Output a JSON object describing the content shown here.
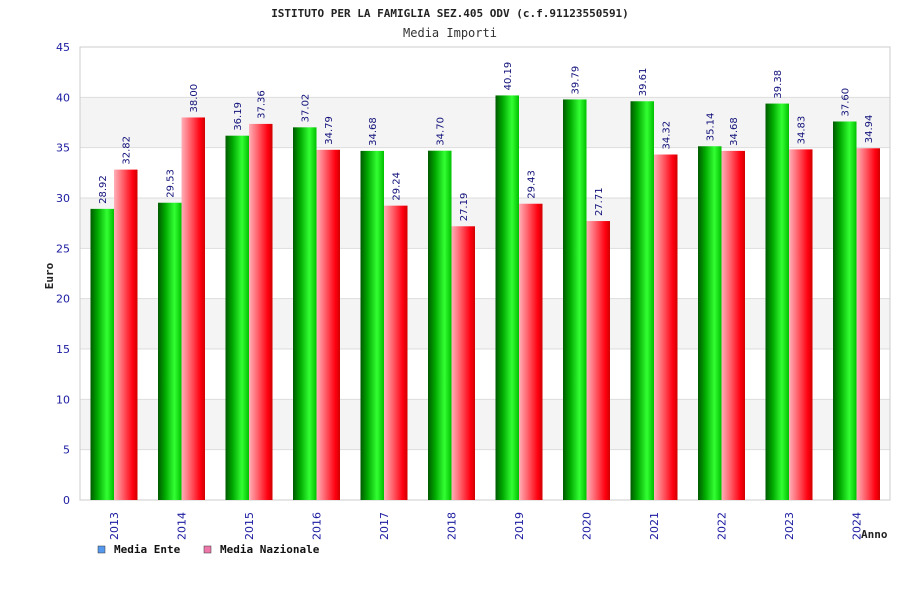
{
  "chart_data": {
    "type": "bar",
    "title": "ISTITUTO PER LA FAMIGLIA SEZ.405 ODV (c.f.91123550591)",
    "subtitle": "Media Importi",
    "xlabel": "Anno",
    "ylabel": "Euro",
    "ylim": [
      0,
      45
    ],
    "yticks": [
      0,
      5,
      10,
      15,
      20,
      25,
      30,
      35,
      40,
      45
    ],
    "categories": [
      "2013",
      "2014",
      "2015",
      "2016",
      "2017",
      "2018",
      "2019",
      "2020",
      "2021",
      "2022",
      "2023",
      "2024"
    ],
    "series": [
      {
        "name": "Media Ente",
        "values": [
          28.92,
          29.53,
          36.19,
          37.02,
          34.68,
          34.7,
          40.19,
          39.79,
          39.61,
          35.14,
          39.38,
          37.6
        ],
        "labels": [
          "28.92",
          "29.53",
          "36.19",
          "37.02",
          "34.68",
          "34.70",
          "40.19",
          "39.79",
          "39.61",
          "35.14",
          "39.38",
          "37.60"
        ],
        "color": "#00c000",
        "legend_color": "#5599ee"
      },
      {
        "name": "Media Nazionale",
        "values": [
          32.82,
          38.0,
          37.36,
          34.79,
          29.24,
          27.19,
          29.43,
          27.71,
          34.32,
          34.68,
          34.83,
          34.94
        ],
        "labels": [
          "32.82",
          "38.00",
          "37.36",
          "34.79",
          "29.24",
          "27.19",
          "29.43",
          "27.71",
          "34.32",
          "34.68",
          "34.83",
          "34.94"
        ],
        "color": "#f00010",
        "legend_color": "#ee77aa"
      }
    ],
    "grid": true,
    "legend_position": "bottom-left"
  }
}
